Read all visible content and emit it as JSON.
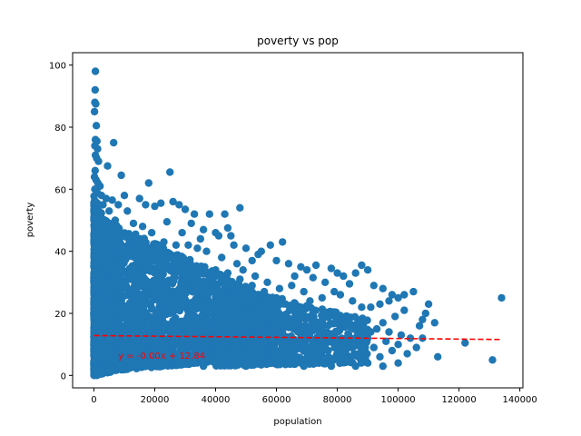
{
  "chart_data": {
    "type": "scatter",
    "title": "poverty vs pop",
    "xlabel": "population",
    "ylabel": "poverty",
    "xlim": [
      -7000,
      141000
    ],
    "ylim": [
      -4,
      104
    ],
    "xticks": [
      0,
      20000,
      40000,
      60000,
      80000,
      100000,
      120000,
      140000
    ],
    "xtick_labels": [
      "0",
      "20000",
      "40000",
      "60000",
      "80000",
      "100000",
      "120000",
      "140000"
    ],
    "yticks": [
      0,
      20,
      40,
      60,
      80,
      100
    ],
    "ytick_labels": [
      "0",
      "20",
      "40",
      "60",
      "80",
      "100"
    ],
    "grid": false,
    "point_color": "#1f77b4",
    "line_color": "#ff0000",
    "annotation_color": "#ff0000",
    "points": [
      [
        500,
        98
      ],
      [
        400,
        92
      ],
      [
        300,
        88
      ],
      [
        600,
        87.5
      ],
      [
        200,
        85
      ],
      [
        800,
        80.5
      ],
      [
        500,
        76
      ],
      [
        1000,
        75.5
      ],
      [
        6500,
        75
      ],
      [
        300,
        74
      ],
      [
        1200,
        73
      ],
      [
        500,
        71
      ],
      [
        900,
        70
      ],
      [
        1500,
        69
      ],
      [
        4500,
        67.5
      ],
      [
        400,
        66
      ],
      [
        200,
        64
      ],
      [
        700,
        63
      ],
      [
        1300,
        62
      ],
      [
        2000,
        61
      ],
      [
        9000,
        64.5
      ],
      [
        18000,
        62
      ],
      [
        25000,
        65.5
      ],
      [
        300,
        60
      ],
      [
        1100,
        59
      ],
      [
        2500,
        58
      ],
      [
        4000,
        57
      ],
      [
        6000,
        56.5
      ],
      [
        8000,
        55
      ],
      [
        3000,
        55
      ],
      [
        600,
        55.5
      ],
      [
        10000,
        58
      ],
      [
        15000,
        57
      ],
      [
        17000,
        55
      ],
      [
        20000,
        54.5
      ],
      [
        22000,
        55.5
      ],
      [
        26000,
        56
      ],
      [
        28000,
        55
      ],
      [
        30000,
        53.5
      ],
      [
        33000,
        52
      ],
      [
        38000,
        52
      ],
      [
        43000,
        52
      ],
      [
        48000,
        54
      ],
      [
        11000,
        53
      ],
      [
        5000,
        53
      ],
      [
        7000,
        50
      ],
      [
        13000,
        49
      ],
      [
        16000,
        48
      ],
      [
        24000,
        49.5
      ],
      [
        32000,
        49
      ],
      [
        36000,
        47
      ],
      [
        40000,
        46
      ],
      [
        45000,
        45
      ],
      [
        44000,
        47.5
      ],
      [
        41000,
        45
      ],
      [
        35000,
        44
      ],
      [
        29000,
        46
      ],
      [
        19000,
        46
      ],
      [
        9000,
        45
      ],
      [
        12000,
        44
      ],
      [
        2000,
        50
      ],
      [
        1000,
        48
      ],
      [
        500,
        45
      ],
      [
        3500,
        44
      ],
      [
        46000,
        42
      ],
      [
        50000,
        41
      ],
      [
        55000,
        40
      ],
      [
        58000,
        42
      ],
      [
        62000,
        43
      ],
      [
        54000,
        39
      ],
      [
        52000,
        37
      ],
      [
        60000,
        37
      ],
      [
        64000,
        36
      ],
      [
        68000,
        35
      ],
      [
        70000,
        34
      ],
      [
        73000,
        35.5
      ],
      [
        78000,
        34.5
      ],
      [
        80000,
        33
      ],
      [
        82000,
        32
      ],
      [
        88000,
        35.5
      ],
      [
        90000,
        34
      ],
      [
        86000,
        33
      ],
      [
        66000,
        32
      ],
      [
        72000,
        31.5
      ],
      [
        76000,
        30
      ],
      [
        84000,
        29.5
      ],
      [
        92000,
        29
      ],
      [
        95000,
        28
      ],
      [
        98000,
        26
      ],
      [
        102000,
        26
      ],
      [
        105000,
        27
      ],
      [
        100000,
        25
      ],
      [
        97000,
        24
      ],
      [
        94000,
        23
      ],
      [
        91000,
        22
      ],
      [
        88000,
        22
      ],
      [
        85000,
        24
      ],
      [
        81000,
        26
      ],
      [
        79000,
        27
      ],
      [
        75000,
        25
      ],
      [
        71000,
        24
      ],
      [
        69000,
        27
      ],
      [
        65000,
        29
      ],
      [
        61000,
        28
      ],
      [
        57000,
        30
      ],
      [
        53000,
        32
      ],
      [
        49000,
        34
      ],
      [
        47000,
        36
      ],
      [
        42000,
        38
      ],
      [
        37000,
        40
      ],
      [
        34000,
        41
      ],
      [
        31000,
        42
      ],
      [
        27000,
        42
      ],
      [
        23000,
        43
      ],
      [
        21000,
        41
      ],
      [
        14000,
        42
      ],
      [
        8000,
        42
      ],
      [
        6000,
        40
      ],
      [
        2000,
        41
      ],
      [
        1200,
        38
      ],
      [
        400,
        36
      ],
      [
        3000,
        35
      ],
      [
        5500,
        36
      ],
      [
        10000,
        37
      ],
      [
        15000,
        36
      ],
      [
        20000,
        37
      ],
      [
        25000,
        38
      ],
      [
        30000,
        37
      ],
      [
        35000,
        35
      ],
      [
        40000,
        34
      ],
      [
        44000,
        33
      ],
      [
        48000,
        31
      ],
      [
        52000,
        29
      ],
      [
        56000,
        27
      ],
      [
        60000,
        25
      ],
      [
        63000,
        23
      ],
      [
        67000,
        22
      ],
      [
        72000,
        20
      ],
      [
        76000,
        19
      ],
      [
        80000,
        18
      ],
      [
        84000,
        17
      ],
      [
        88000,
        16
      ],
      [
        93000,
        15
      ],
      [
        97000,
        14
      ],
      [
        101000,
        13
      ],
      [
        104000,
        12
      ],
      [
        107000,
        16
      ],
      [
        108000,
        18
      ],
      [
        109000,
        20
      ],
      [
        110000,
        23
      ],
      [
        112000,
        17
      ],
      [
        113000,
        6
      ],
      [
        108000,
        12
      ],
      [
        106000,
        9
      ],
      [
        103000,
        7
      ],
      [
        100000,
        10
      ],
      [
        98000,
        8
      ],
      [
        96000,
        11
      ],
      [
        94000,
        6
      ],
      [
        92000,
        9
      ],
      [
        90000,
        12
      ],
      [
        87000,
        7
      ],
      [
        84000,
        10
      ],
      [
        82000,
        6
      ],
      [
        79000,
        11
      ],
      [
        77000,
        8
      ],
      [
        74000,
        12
      ],
      [
        71000,
        7
      ],
      [
        68000,
        13
      ],
      [
        65000,
        9
      ],
      [
        62000,
        14
      ],
      [
        59000,
        8
      ],
      [
        56000,
        15
      ],
      [
        53000,
        10
      ],
      [
        50000,
        16
      ],
      [
        47000,
        12
      ],
      [
        44000,
        18
      ],
      [
        41000,
        9
      ],
      [
        38000,
        20
      ],
      [
        35000,
        14
      ],
      [
        32000,
        22
      ],
      [
        29000,
        11
      ],
      [
        26000,
        24
      ],
      [
        23000,
        15
      ],
      [
        20000,
        26
      ],
      [
        17000,
        12
      ],
      [
        14000,
        28
      ],
      [
        11000,
        16
      ],
      [
        8000,
        30
      ],
      [
        5000,
        14
      ],
      [
        3000,
        25
      ],
      [
        1500,
        20
      ],
      [
        700,
        30
      ],
      [
        300,
        10
      ],
      [
        200,
        5
      ],
      [
        100,
        1
      ],
      [
        122000,
        10.5
      ],
      [
        131000,
        5
      ],
      [
        134000,
        25
      ],
      [
        86000,
        3
      ],
      [
        90000,
        4
      ],
      [
        95000,
        3
      ],
      [
        100000,
        4
      ],
      [
        83000,
        5
      ],
      [
        78000,
        3
      ],
      [
        73000,
        4
      ],
      [
        69000,
        3
      ],
      [
        64000,
        5
      ],
      [
        58000,
        4
      ],
      [
        54000,
        5
      ],
      [
        50000,
        3
      ],
      [
        45000,
        5
      ],
      [
        40000,
        4
      ],
      [
        36000,
        3
      ],
      [
        31000,
        5
      ],
      [
        27000,
        4
      ],
      [
        22000,
        3
      ],
      [
        18000,
        5
      ],
      [
        13000,
        4
      ],
      [
        9000,
        3
      ],
      [
        6000,
        5
      ],
      [
        4000,
        2
      ],
      [
        2500,
        1
      ],
      [
        1000,
        0
      ],
      [
        33000,
        30
      ],
      [
        37000,
        27
      ],
      [
        42000,
        25
      ],
      [
        46000,
        22
      ],
      [
        51000,
        20
      ],
      [
        57000,
        19
      ],
      [
        61000,
        17
      ],
      [
        66000,
        16
      ],
      [
        70000,
        15
      ],
      [
        75000,
        14
      ],
      [
        79000,
        13
      ],
      [
        83000,
        12
      ],
      [
        86000,
        10
      ],
      [
        89000,
        8
      ],
      [
        91000,
        14
      ],
      [
        95000,
        17
      ],
      [
        99000,
        19
      ],
      [
        102000,
        21
      ],
      [
        18000,
        30
      ],
      [
        22000,
        32
      ],
      [
        27000,
        34
      ],
      [
        31000,
        35
      ],
      [
        12000,
        33
      ],
      [
        7000,
        35
      ],
      [
        4000,
        38
      ],
      [
        16000,
        39
      ],
      [
        24000,
        28
      ],
      [
        28000,
        26
      ],
      [
        34000,
        24
      ],
      [
        39000,
        22
      ],
      [
        43000,
        21
      ],
      [
        49000,
        19
      ],
      [
        55000,
        17
      ],
      [
        59000,
        15
      ],
      [
        63000,
        12
      ],
      [
        67000,
        11
      ],
      [
        72000,
        10
      ],
      [
        76000,
        9
      ],
      [
        81000,
        8
      ]
    ],
    "dense_regions": [
      {
        "x_start": 0,
        "x_end": 60000,
        "y_low_start": 1,
        "y_low_end": 6,
        "y_high_start": 52,
        "y_high_end": 24,
        "count": 2600
      },
      {
        "x_start": 0,
        "x_end": 6000,
        "y_low_start": 0,
        "y_low_end": 1,
        "y_high_start": 58,
        "y_high_end": 45,
        "count": 1000
      },
      {
        "x_start": 40000,
        "x_end": 90000,
        "y_low_start": 3,
        "y_low_end": 4,
        "y_high_start": 30,
        "y_high_end": 18,
        "count": 900
      }
    ],
    "trendline": {
      "slope": -9.4e-06,
      "intercept": 12.84,
      "x_start": 0,
      "x_end": 134000
    },
    "annotation": {
      "text": "y = -0.00x + 12.84",
      "x": 8000,
      "y": 6.5
    }
  }
}
